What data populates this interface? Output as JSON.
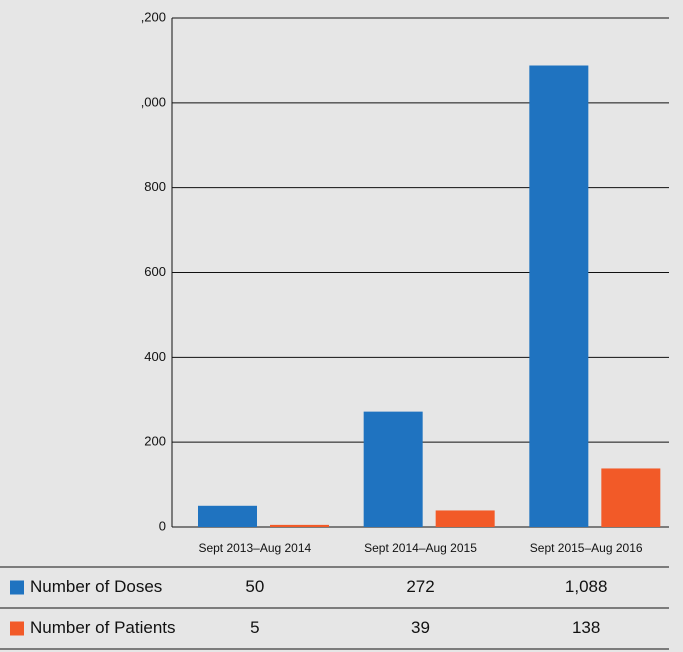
{
  "chart_data": {
    "type": "bar",
    "categories": [
      "Sept 2013–Aug 2014",
      "Sept 2014–Aug 2015",
      "Sept 2015–Aug 2016"
    ],
    "series": [
      {
        "name": "Number of Doses",
        "color": "#1f73c0",
        "values": [
          50,
          272,
          1088
        ],
        "value_labels": [
          "50",
          "272",
          "1,088"
        ]
      },
      {
        "name": "Number of Patients",
        "color": "#f25a28",
        "values": [
          5,
          39,
          138
        ]
      }
    ],
    "ylim": [
      0,
      1200
    ],
    "yticks": [
      0,
      200,
      400,
      600,
      800,
      {
        "value": 1000,
        "label": ",000"
      },
      {
        "value": 1200,
        "label": ",200"
      }
    ],
    "grid": true
  }
}
